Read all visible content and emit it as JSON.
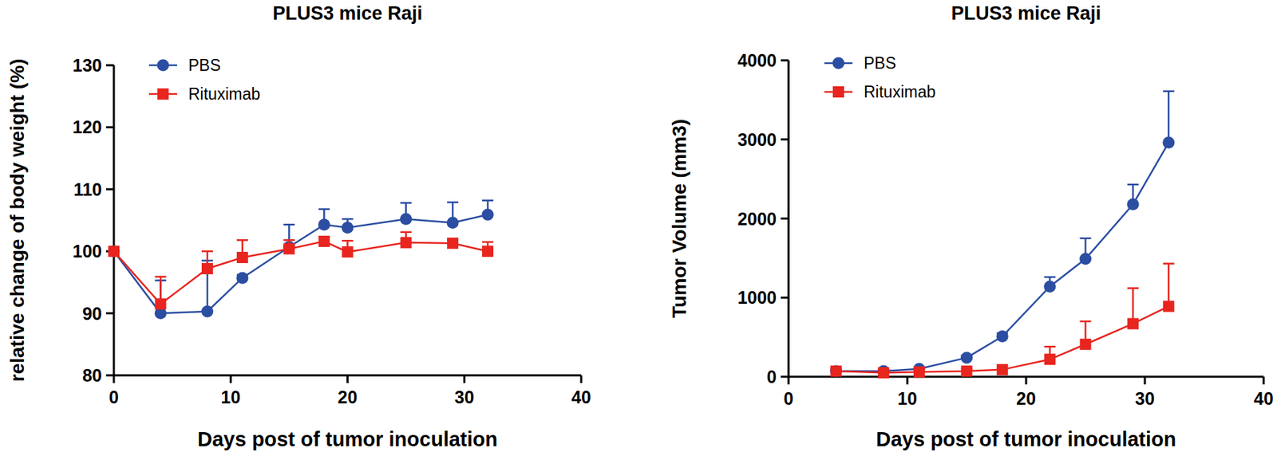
{
  "chart_data": [
    {
      "type": "line",
      "title": "PLUS3 mice Raji",
      "x_label": "Days post of tumor inoculation",
      "y_label": "relative change of body weight (%)",
      "x": [
        0,
        4,
        8,
        11,
        15,
        18,
        20,
        25,
        29,
        32
      ],
      "xlim": [
        0,
        40
      ],
      "xticks": [
        0,
        10,
        20,
        30,
        40
      ],
      "ylim": [
        80,
        130
      ],
      "yticks": [
        80,
        90,
        100,
        110,
        120,
        130
      ],
      "grid": false,
      "legend": "upper left",
      "series": [
        {
          "name": "PBS",
          "color": "#2b4ea2",
          "marker": "circle",
          "values": [
            100,
            90,
            90.3,
            95.7,
            100.7,
            104.3,
            103.8,
            105.2,
            104.6,
            105.9
          ],
          "errors": [
            0,
            5.3,
            8.2,
            0.5,
            3.6,
            2.5,
            1.4,
            2.6,
            3.3,
            2.3
          ]
        },
        {
          "name": "Rituximab",
          "color": "#e8251f",
          "marker": "square",
          "values": [
            100,
            91.5,
            97.2,
            99,
            100.4,
            101.6,
            99.9,
            101.4,
            101.3,
            100
          ],
          "errors": [
            0,
            4.4,
            2.8,
            2.8,
            1.4,
            0.6,
            1.8,
            1.7,
            0.5,
            1.5
          ]
        }
      ]
    },
    {
      "type": "line",
      "title": "PLUS3 mice Raji",
      "x_label": "Days post of tumor inoculation",
      "y_label": "Tumor Volume (mm3)",
      "x": [
        4,
        8,
        11,
        15,
        18,
        22,
        25,
        29,
        32
      ],
      "xlim": [
        0,
        40
      ],
      "xticks": [
        0,
        10,
        20,
        30,
        40
      ],
      "ylim": [
        0,
        4000
      ],
      "yticks": [
        0,
        1000,
        2000,
        3000,
        4000
      ],
      "grid": false,
      "legend": "upper left",
      "series": [
        {
          "name": "PBS",
          "color": "#2b4ea2",
          "marker": "circle",
          "values": [
            70,
            70,
            100,
            240,
            510,
            1140,
            1490,
            2180,
            2960
          ],
          "errors": [
            20,
            15,
            20,
            30,
            40,
            120,
            260,
            250,
            650
          ]
        },
        {
          "name": "Rituximab",
          "color": "#e8251f",
          "marker": "square",
          "values": [
            70,
            50,
            60,
            70,
            90,
            220,
            410,
            670,
            890
          ],
          "errors": [
            40,
            20,
            20,
            30,
            40,
            160,
            290,
            450,
            540
          ]
        }
      ]
    }
  ]
}
